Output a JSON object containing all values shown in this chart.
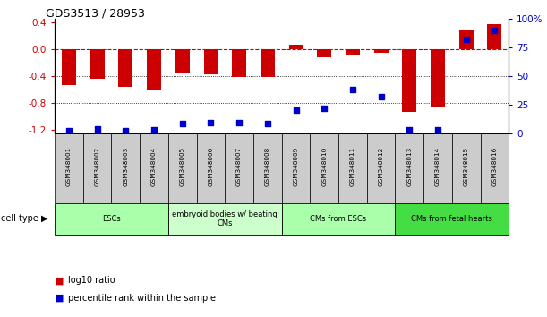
{
  "title": "GDS3513 / 28953",
  "samples": [
    "GSM348001",
    "GSM348002",
    "GSM348003",
    "GSM348004",
    "GSM348005",
    "GSM348006",
    "GSM348007",
    "GSM348008",
    "GSM348009",
    "GSM348010",
    "GSM348011",
    "GSM348012",
    "GSM348013",
    "GSM348014",
    "GSM348015",
    "GSM348016"
  ],
  "log10_ratio": [
    -0.54,
    -0.44,
    -0.56,
    -0.6,
    -0.35,
    -0.37,
    -0.42,
    -0.42,
    0.06,
    -0.12,
    -0.08,
    -0.06,
    -0.93,
    -0.87,
    0.28,
    0.37
  ],
  "percentile_rank": [
    2,
    4,
    2,
    3,
    8,
    9,
    9,
    8,
    20,
    22,
    38,
    32,
    3,
    3,
    82,
    90
  ],
  "cell_types": [
    {
      "label": "ESCs",
      "start": 0,
      "end": 3,
      "color": "#aaffaa"
    },
    {
      "label": "embryoid bodies w/ beating\nCMs",
      "start": 4,
      "end": 7,
      "color": "#ccffcc"
    },
    {
      "label": "CMs from ESCs",
      "start": 8,
      "end": 11,
      "color": "#aaffaa"
    },
    {
      "label": "CMs from fetal hearts",
      "start": 12,
      "end": 15,
      "color": "#44dd44"
    }
  ],
  "ylim_left": [
    -1.25,
    0.45
  ],
  "ylim_right": [
    0,
    100
  ],
  "bar_color": "#cc0000",
  "dot_color": "#0000cc",
  "hline_color": "#cc0000",
  "grid_color": "#000000",
  "left_ticks": [
    0.4,
    0.0,
    -0.4,
    -0.8,
    -1.2
  ],
  "right_ticks": [
    100,
    75,
    50,
    25,
    0
  ],
  "legend_red": "log10 ratio",
  "legend_blue": "percentile rank within the sample",
  "cell_type_label": "cell type",
  "sample_box_color": "#cccccc",
  "bar_width": 0.5
}
